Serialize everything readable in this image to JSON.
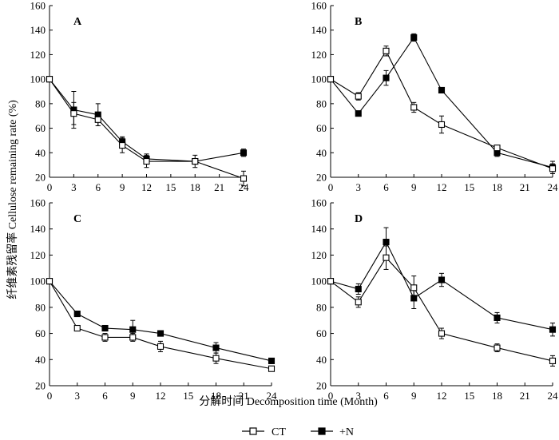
{
  "figure": {
    "ylabel": "纤维素残留率 Cellulose remaining rate (%)",
    "xlabel": "分解时间 Decomposition time (Month)",
    "legend": [
      {
        "label": "CT",
        "marker": "open-square"
      },
      {
        "label": "+N",
        "marker": "filled-square"
      }
    ]
  },
  "chart_data": [
    {
      "panel": "A",
      "type": "line",
      "x": [
        0,
        3,
        6,
        9,
        12,
        18,
        24
      ],
      "xticks": [
        0,
        3,
        6,
        9,
        12,
        15,
        18,
        21,
        24
      ],
      "xlim": [
        0,
        24
      ],
      "ylim": [
        20,
        160
      ],
      "yticks": [
        20,
        40,
        60,
        80,
        100,
        120,
        140,
        160
      ],
      "series": [
        {
          "name": "CT",
          "values": [
            100,
            72,
            67,
            46,
            33,
            33,
            19
          ],
          "errors": [
            0,
            9,
            5,
            6,
            5,
            5,
            6
          ]
        },
        {
          "name": "+N",
          "values": [
            100,
            75,
            71,
            49,
            35,
            33,
            40
          ],
          "errors": [
            0,
            15,
            9,
            4,
            4,
            2,
            3
          ]
        }
      ]
    },
    {
      "panel": "B",
      "type": "line",
      "x": [
        0,
        3,
        6,
        9,
        12,
        18,
        24
      ],
      "xticks": [
        0,
        3,
        6,
        9,
        12,
        15,
        18,
        21,
        24
      ],
      "xlim": [
        0,
        24
      ],
      "ylim": [
        20,
        160
      ],
      "yticks": [
        20,
        40,
        60,
        80,
        100,
        120,
        140,
        160
      ],
      "series": [
        {
          "name": "CT",
          "values": [
            100,
            86,
            123,
            77,
            63,
            44,
            27
          ],
          "errors": [
            0,
            3,
            4,
            4,
            7,
            2,
            4
          ]
        },
        {
          "name": "+N",
          "values": [
            100,
            72,
            101,
            134,
            91,
            40,
            28
          ],
          "errors": [
            0,
            1,
            6,
            3,
            2,
            3,
            5
          ]
        }
      ]
    },
    {
      "panel": "C",
      "type": "line",
      "x": [
        0,
        3,
        6,
        9,
        12,
        18,
        24
      ],
      "xticks": [
        0,
        3,
        6,
        9,
        12,
        15,
        18,
        21,
        24
      ],
      "xlim": [
        0,
        24
      ],
      "ylim": [
        20,
        160
      ],
      "yticks": [
        20,
        40,
        60,
        80,
        100,
        120,
        140,
        160
      ],
      "series": [
        {
          "name": "CT",
          "values": [
            100,
            64,
            57,
            57,
            50,
            41,
            33
          ],
          "errors": [
            0,
            2,
            3,
            3,
            4,
            4,
            2
          ]
        },
        {
          "name": "+N",
          "values": [
            100,
            75,
            64,
            63,
            60,
            49,
            39
          ],
          "errors": [
            0,
            2,
            1,
            7,
            2,
            4,
            1
          ]
        }
      ]
    },
    {
      "panel": "D",
      "type": "line",
      "x": [
        0,
        3,
        6,
        9,
        12,
        18,
        24
      ],
      "xticks": [
        0,
        3,
        6,
        9,
        12,
        15,
        18,
        21,
        24
      ],
      "xlim": [
        0,
        24
      ],
      "ylim": [
        20,
        160
      ],
      "yticks": [
        20,
        40,
        60,
        80,
        100,
        120,
        140,
        160
      ],
      "series": [
        {
          "name": "CT",
          "values": [
            100,
            84,
            118,
            95,
            60,
            49,
            39
          ],
          "errors": [
            0,
            4,
            9,
            9,
            4,
            3,
            4
          ]
        },
        {
          "name": "+N",
          "values": [
            100,
            94,
            130,
            87,
            101,
            72,
            63
          ],
          "errors": [
            0,
            4,
            11,
            8,
            5,
            4,
            5
          ]
        }
      ]
    }
  ]
}
